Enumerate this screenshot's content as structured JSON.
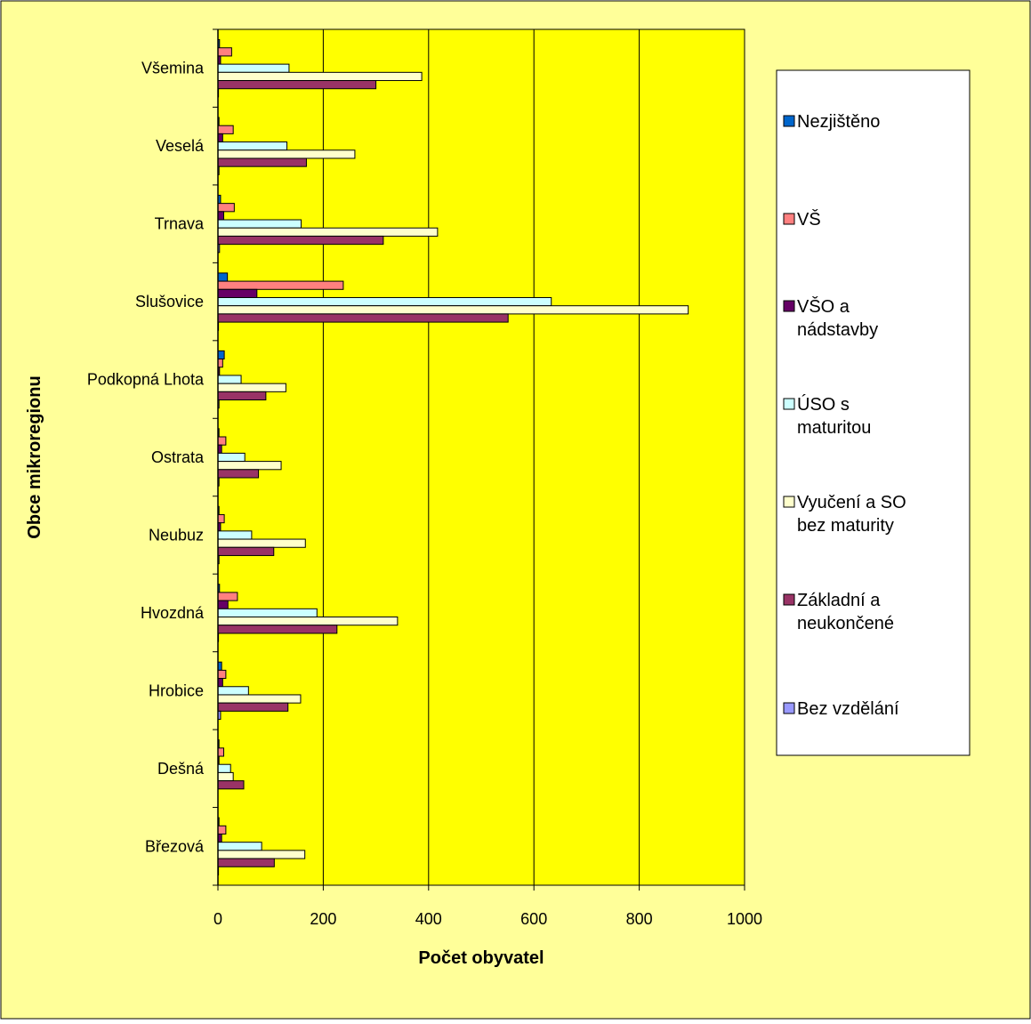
{
  "chart_data": {
    "type": "bar",
    "orientation": "horizontal",
    "xlabel": "Počet obyvatel",
    "ylabel": "Obce mikroregionu",
    "xlim": [
      0,
      1000
    ],
    "xticks": [
      0,
      200,
      400,
      600,
      800,
      1000
    ],
    "grid": "vertical",
    "legend_position": "right",
    "colors": {
      "page_background": "#FFFF99",
      "plot_background": "#FFFF00",
      "legend_background": "#FFFFFF",
      "gridline": "#000000"
    },
    "categories": [
      "Všemina",
      "Veselá",
      "Trnava",
      "Slušovice",
      "Podkopná Lhota",
      "Ostrata",
      "Neubuz",
      "Hvozdná",
      "Hrobice",
      "Dešná",
      "Březová"
    ],
    "series": [
      {
        "name": "Nezjištěno",
        "color": "#0066CC",
        "values": [
          3,
          2,
          5,
          18,
          12,
          2,
          2,
          3,
          7,
          2,
          2
        ]
      },
      {
        "name": "VŠ",
        "color": "#FF8080",
        "values": [
          26,
          29,
          31,
          238,
          9,
          15,
          12,
          37,
          15,
          11,
          15
        ]
      },
      {
        "name": "VŠO a nádstavby",
        "color": "#660066",
        "values": [
          5,
          9,
          11,
          74,
          3,
          7,
          5,
          19,
          9,
          2,
          7
        ]
      },
      {
        "name": "ÚSO s maturitou",
        "color": "#CCFFFF",
        "values": [
          135,
          131,
          158,
          633,
          44,
          51,
          64,
          188,
          58,
          24,
          83
        ]
      },
      {
        "name": "Vyučení a SO bez maturity",
        "color": "#FFFFCC",
        "values": [
          387,
          260,
          417,
          893,
          129,
          120,
          166,
          341,
          157,
          29,
          165
        ]
      },
      {
        "name": "Základní a neukončené",
        "color": "#993366",
        "values": [
          300,
          168,
          314,
          551,
          91,
          77,
          106,
          226,
          133,
          49,
          107
        ]
      },
      {
        "name": "Bez vzdělání",
        "color": "#9999FF",
        "values": [
          1,
          2,
          3,
          1,
          2,
          2,
          2,
          1,
          5,
          0,
          1
        ]
      }
    ],
    "legend_labels": [
      {
        "line1": "Nezjištěno",
        "line2": ""
      },
      {
        "line1": "VŠ",
        "line2": ""
      },
      {
        "line1": "VŠO a",
        "line2": "nádstavby"
      },
      {
        "line1": "ÚSO s",
        "line2": "maturitou"
      },
      {
        "line1": "Vyučení a SO",
        "line2": "bez maturity"
      },
      {
        "line1": "Základní a",
        "line2": "neukončené"
      },
      {
        "line1": "Bez vzdělání",
        "line2": ""
      }
    ]
  }
}
